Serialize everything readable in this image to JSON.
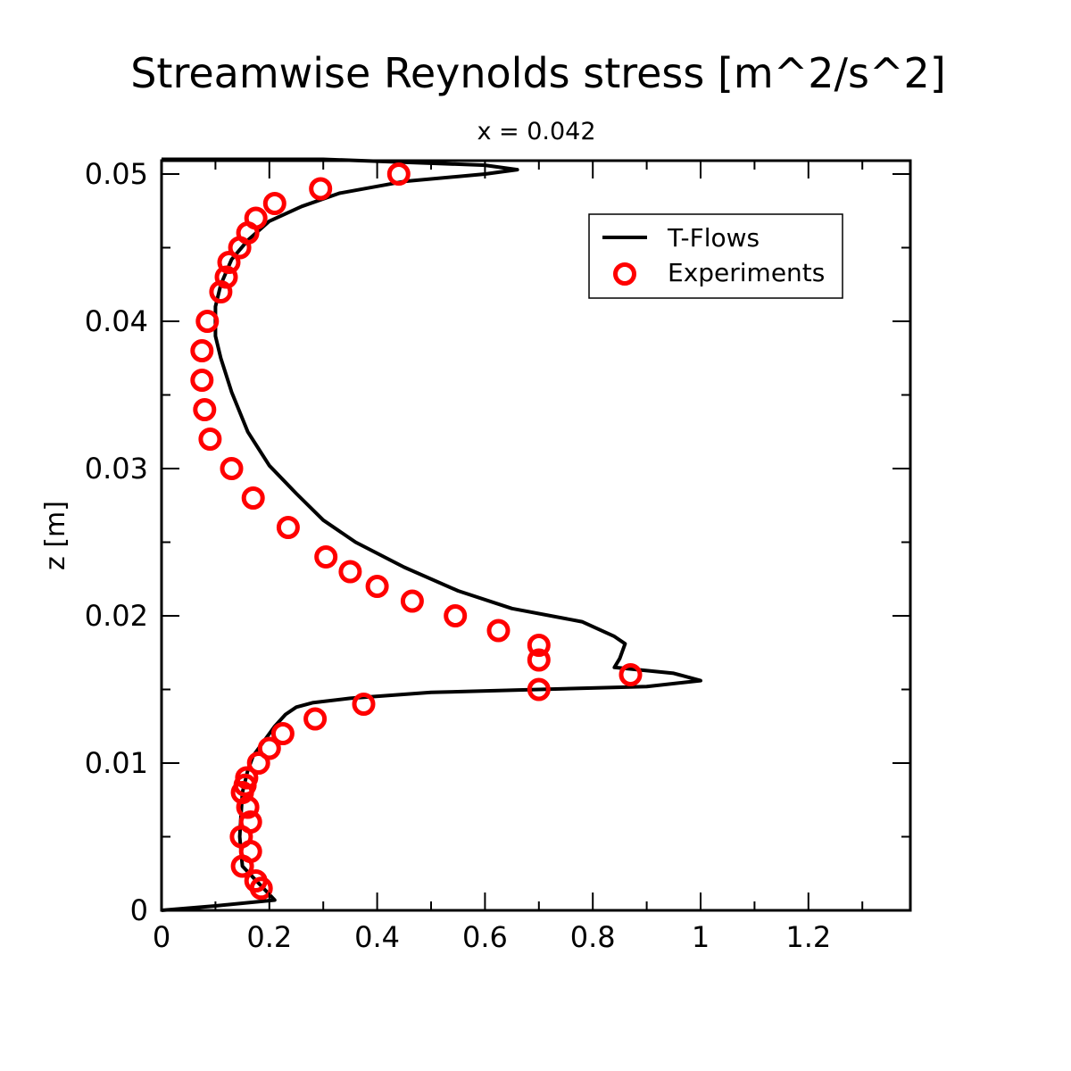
{
  "chart_data": {
    "type": "line",
    "title": "Streamwise Reynolds stress [m^2/s^2]",
    "subtitle": "x = 0.042",
    "xlabel": "",
    "ylabel": "z [m]",
    "xlim": [
      0,
      1.4
    ],
    "ylim": [
      0,
      0.051
    ],
    "xticks": [
      {
        "value": 0,
        "label": "0"
      },
      {
        "value": 0.2,
        "label": "0.2"
      },
      {
        "value": 0.4,
        "label": "0.4"
      },
      {
        "value": 0.6,
        "label": "0.6"
      },
      {
        "value": 0.8,
        "label": "0.8"
      },
      {
        "value": 1.0,
        "label": "1"
      },
      {
        "value": 1.2,
        "label": "1.2"
      }
    ],
    "yticks": [
      {
        "value": 0,
        "label": "0"
      },
      {
        "value": 0.01,
        "label": "0.01"
      },
      {
        "value": 0.02,
        "label": "0.02"
      },
      {
        "value": 0.03,
        "label": "0.03"
      },
      {
        "value": 0.04,
        "label": "0.04"
      },
      {
        "value": 0.05,
        "label": "0.05"
      }
    ],
    "grid": false,
    "legend_position": "top-right",
    "series": [
      {
        "name": "T-Flows",
        "style": "line",
        "color": "#000000",
        "x": [
          0.0,
          0.1,
          0.21,
          0.15,
          0.145,
          0.15,
          0.16,
          0.17,
          0.19,
          0.21,
          0.23,
          0.25,
          0.28,
          0.35,
          0.5,
          0.7,
          0.9,
          1.0,
          0.95,
          0.84,
          0.85,
          0.86,
          0.84,
          0.78,
          0.65,
          0.55,
          0.45,
          0.36,
          0.3,
          0.25,
          0.2,
          0.16,
          0.13,
          0.11,
          0.1,
          0.1,
          0.11,
          0.13,
          0.16,
          0.2,
          0.26,
          0.33,
          0.45,
          0.6,
          0.66,
          0.6,
          0.3,
          0.0
        ],
        "y": [
          0.0,
          0.0003,
          0.0007,
          0.003,
          0.005,
          0.008,
          0.0095,
          0.0105,
          0.0115,
          0.0125,
          0.0133,
          0.0138,
          0.0141,
          0.0144,
          0.0148,
          0.015,
          0.0152,
          0.0156,
          0.0161,
          0.0165,
          0.0171,
          0.0181,
          0.0186,
          0.0196,
          0.0205,
          0.0217,
          0.0233,
          0.025,
          0.0265,
          0.0283,
          0.0302,
          0.0325,
          0.0352,
          0.0375,
          0.039,
          0.041,
          0.0425,
          0.0442,
          0.0455,
          0.0468,
          0.0478,
          0.0487,
          0.0495,
          0.05,
          0.0503,
          0.0506,
          0.051,
          0.051
        ]
      },
      {
        "name": "Experiments",
        "style": "scatter",
        "color": "#ff0000",
        "x": [
          0.185,
          0.175,
          0.165,
          0.15,
          0.165,
          0.148,
          0.16,
          0.15,
          0.155,
          0.158,
          0.18,
          0.2,
          0.225,
          0.285,
          0.375,
          0.7,
          0.87,
          0.7,
          0.7,
          0.625,
          0.545,
          0.465,
          0.4,
          0.35,
          0.305,
          0.235,
          0.17,
          0.13,
          0.09,
          0.08,
          0.075,
          0.075,
          0.085,
          0.11,
          0.12,
          0.125,
          0.145,
          0.16,
          0.175,
          0.21,
          0.295,
          0.44
        ],
        "y": [
          0.0015,
          0.002,
          0.004,
          0.003,
          0.006,
          0.005,
          0.007,
          0.008,
          0.0085,
          0.009,
          0.01,
          0.011,
          0.012,
          0.013,
          0.014,
          0.015,
          0.016,
          0.017,
          0.018,
          0.019,
          0.02,
          0.021,
          0.022,
          0.023,
          0.024,
          0.026,
          0.028,
          0.03,
          0.032,
          0.034,
          0.036,
          0.038,
          0.04,
          0.042,
          0.043,
          0.044,
          0.045,
          0.046,
          0.047,
          0.048,
          0.049,
          0.05
        ]
      }
    ]
  }
}
